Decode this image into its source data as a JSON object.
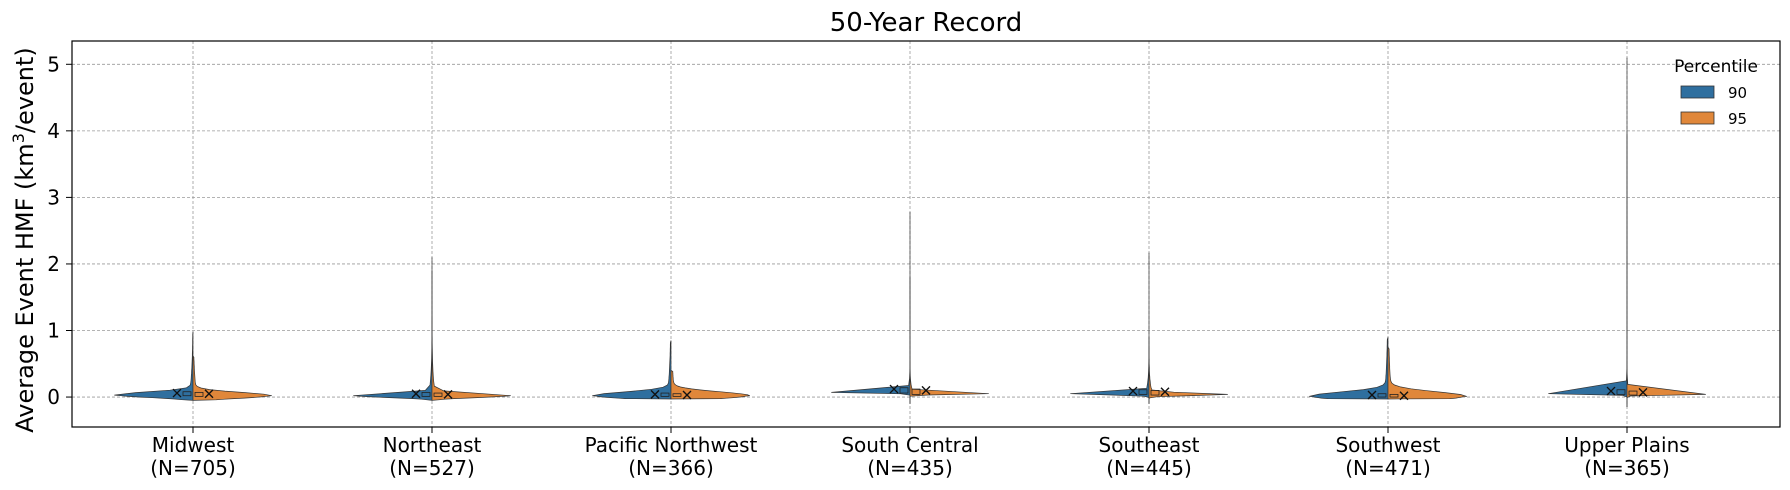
{
  "chart_data": {
    "type": "violin",
    "title": "50-Year Record",
    "ylabel": "Average Event HMF (km³/event)",
    "ylabel_parts": {
      "pre": "Average Event HMF (km",
      "sup": "3",
      "post": "/event)"
    },
    "xlabel": "",
    "ylim": [
      -0.45,
      5.35
    ],
    "yticks": [
      0,
      1,
      2,
      3,
      4,
      5
    ],
    "grid": true,
    "legend": {
      "title": "Percentile",
      "position": "top-right"
    },
    "categories": [
      {
        "name": "Midwest",
        "n": "(N=705)"
      },
      {
        "name": "Northeast",
        "n": "(N=527)"
      },
      {
        "name": "Pacific Northwest",
        "n": "(N=366)"
      },
      {
        "name": "South Central",
        "n": "(N=435)"
      },
      {
        "name": "Southeast",
        "n": "(N=445)"
      },
      {
        "name": "Southwest",
        "n": "(N=471)"
      },
      {
        "name": "Upper Plains",
        "n": "(N=365)"
      }
    ],
    "series": [
      {
        "name": "90",
        "color": "#2f6f9f",
        "max": [
          0.98,
          2.1,
          0.85,
          2.78,
          2.17,
          0.9,
          5.1
        ],
        "min": [
          -0.05,
          -0.05,
          -0.03,
          -0.1,
          -0.1,
          -0.03,
          -0.15
        ],
        "median": [
          0.03,
          0.02,
          0.02,
          0.07,
          0.05,
          0.01,
          0.05
        ],
        "mean": [
          0.06,
          0.05,
          0.04,
          0.12,
          0.09,
          0.03,
          0.09
        ],
        "width": [
          0.045,
          0.033,
          0.055,
          0.013,
          0.02,
          0.065,
          0.013
        ]
      },
      {
        "name": "95",
        "color": "#e0873a",
        "max": [
          0.62,
          1.9,
          0.4,
          1.8,
          0.9,
          0.75,
          3.95
        ],
        "min": [
          -0.05,
          -0.05,
          -0.03,
          -0.1,
          -0.1,
          -0.03,
          -0.15
        ],
        "median": [
          0.02,
          0.02,
          0.02,
          0.05,
          0.04,
          0.01,
          0.04
        ],
        "mean": [
          0.05,
          0.04,
          0.03,
          0.1,
          0.08,
          0.02,
          0.07
        ],
        "width": [
          0.05,
          0.035,
          0.06,
          0.014,
          0.021,
          0.07,
          0.012
        ]
      }
    ]
  }
}
